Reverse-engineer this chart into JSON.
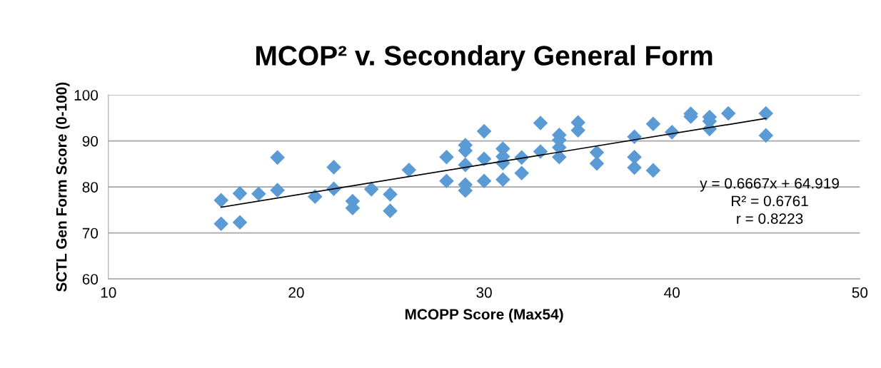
{
  "chart_data": {
    "type": "scatter",
    "title": "MCOP² v. Secondary General Form",
    "xlabel": "MCOPP Score (Max54)",
    "ylabel": "SCTL Gen Form Score (0-100)",
    "xlim": [
      10,
      50
    ],
    "xticks": [
      10,
      20,
      30,
      40,
      50
    ],
    "ylim": [
      60,
      100
    ],
    "yticks": [
      60,
      70,
      80,
      90,
      100
    ],
    "grid": "y",
    "series": [
      {
        "color": "#5b9bd5",
        "marker": "diamond",
        "x": [
          16,
          16,
          17,
          17,
          18,
          19,
          19,
          21,
          22,
          22,
          23,
          23,
          24,
          25,
          25,
          26,
          28,
          28,
          29,
          29,
          29,
          29,
          29,
          30,
          30,
          30,
          31,
          31,
          31,
          31,
          32,
          32,
          33,
          33,
          34,
          34,
          34,
          34,
          35,
          35,
          36,
          36,
          38,
          38,
          38,
          39,
          39,
          40,
          41,
          41,
          42,
          42,
          42,
          43,
          45,
          45
        ],
        "values": [
          72.0,
          77.1,
          78.6,
          72.3,
          78.5,
          86.4,
          79.3,
          77.9,
          84.3,
          79.6,
          76.9,
          75.4,
          79.5,
          78.4,
          74.8,
          83.7,
          86.5,
          81.3,
          89.1,
          87.9,
          84.8,
          80.5,
          79.2,
          92.1,
          86.1,
          81.3,
          88.3,
          86.6,
          85.2,
          81.6,
          86.4,
          83.0,
          93.9,
          87.7,
          91.3,
          90.2,
          88.6,
          86.5,
          94.0,
          92.3,
          87.5,
          85.1,
          90.9,
          86.5,
          84.2,
          93.7,
          83.6,
          91.9,
          95.9,
          95.3,
          95.2,
          94.3,
          92.6,
          96.0,
          96.0,
          91.2
        ]
      },
      {
        "type": "line",
        "color": "#000000",
        "x": [
          16,
          45
        ],
        "marker": "none",
        "values": [
          75.6,
          94.9
        ]
      }
    ],
    "annotations": [
      "y = 0.6667x + 64.919\nR² = 0.6761\nr = 0.8223"
    ]
  }
}
